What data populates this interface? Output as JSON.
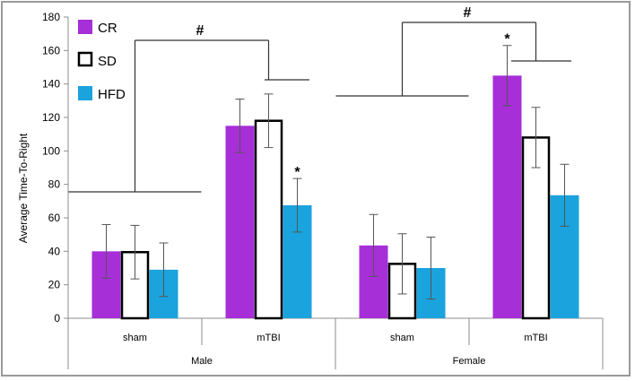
{
  "chart_data": {
    "type": "bar",
    "ylabel": "Average Time-To-Right",
    "ylim": [
      0,
      180
    ],
    "yticks": [
      0,
      20,
      40,
      60,
      80,
      100,
      120,
      140,
      160,
      180
    ],
    "groups": [
      {
        "label": "Male",
        "categories": [
          "sham",
          "mTBI"
        ]
      },
      {
        "label": "Female",
        "categories": [
          "sham",
          "mTBI"
        ]
      }
    ],
    "categories": [
      "sham",
      "mTBI",
      "sham",
      "mTBI"
    ],
    "series": [
      {
        "name": "CR",
        "color": "#a62fd8",
        "fill": "#a62fd8",
        "values": [
          40,
          115,
          43.5,
          145
        ],
        "errors": [
          16,
          16,
          18.5,
          18
        ]
      },
      {
        "name": "SD",
        "color": "#000000",
        "fill": "#ffffff",
        "values": [
          39.5,
          118,
          32.5,
          108
        ],
        "errors": [
          16,
          16,
          18,
          18
        ]
      },
      {
        "name": "HFD",
        "color": "#1aa3dc",
        "fill": "#1aa3dc",
        "values": [
          29,
          67.5,
          30,
          73.5
        ],
        "errors": [
          16,
          16,
          18.5,
          18.5
        ]
      }
    ],
    "annotations": [
      {
        "text": "*",
        "category_index": 1,
        "series": "HFD"
      },
      {
        "text": "*",
        "category_index": 3,
        "series": "CR"
      },
      {
        "text": "#",
        "between": "Male sham vs Male mTBI"
      },
      {
        "text": "#",
        "between": "Female sham vs Female mTBI"
      }
    ],
    "legend": {
      "position": "top-left",
      "entries": [
        "CR",
        "SD",
        "HFD"
      ]
    }
  }
}
